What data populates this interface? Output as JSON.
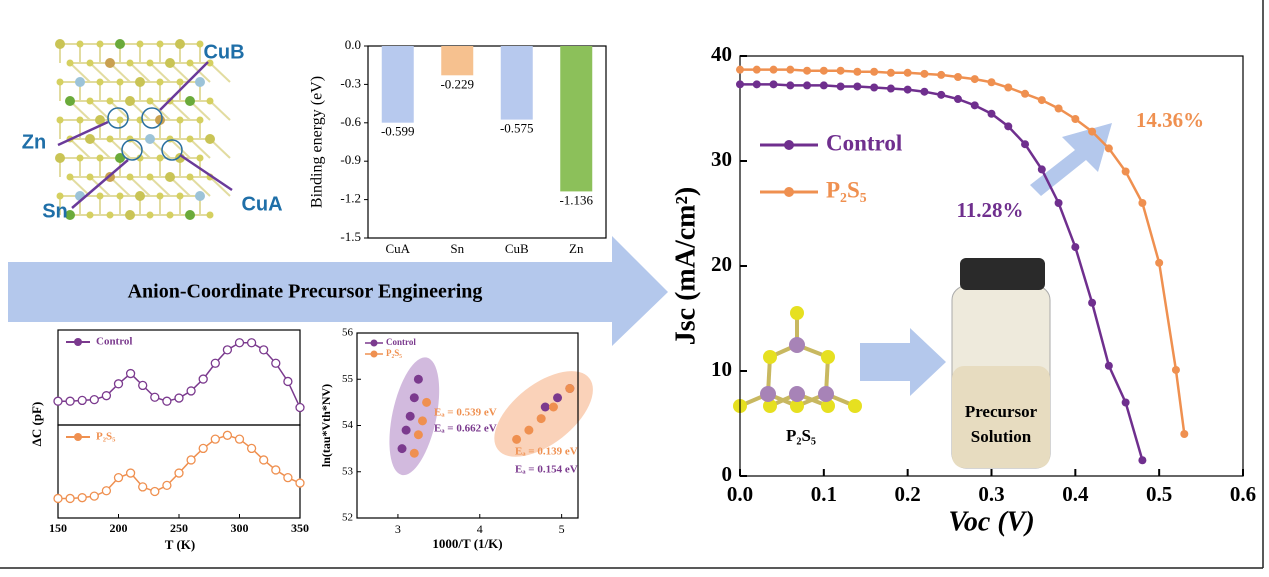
{
  "structure": {
    "labels": [
      "CuB",
      "Zn",
      "Sn",
      "CuA"
    ]
  },
  "banner": "Anion-Coordinate Precursor Engineering",
  "molecule_label": "P₂S₅",
  "vial_label": [
    "Precursor",
    "Solution"
  ],
  "chart_data": [
    {
      "type": "bar",
      "ylabel": "Binding energy (eV)",
      "categories": [
        "CuA",
        "Sn",
        "CuB",
        "Zn"
      ],
      "values": [
        -0.599,
        -0.229,
        -0.575,
        -1.136
      ],
      "colors": [
        "#b7c9ee",
        "#f6c18f",
        "#b7c9ee",
        "#8cc05a"
      ],
      "ylim": [
        -1.5,
        0
      ],
      "yticks": [
        {
          "value": 0,
          "label": "0.0"
        },
        -0.3,
        -0.6,
        -0.9,
        -1.2,
        -1.5
      ]
    },
    {
      "type": "line",
      "ylabel": "ΔC (pF)",
      "xlabel": "T (K)",
      "x": [
        150,
        160,
        170,
        180,
        190,
        200,
        210,
        220,
        230,
        240,
        250,
        260,
        270,
        280,
        290,
        300,
        310,
        320,
        330,
        340,
        350
      ],
      "series": [
        {
          "name": "Control",
          "color": "#7b3a8e",
          "values": [
            0.2,
            0.2,
            0.21,
            0.22,
            0.27,
            0.42,
            0.55,
            0.4,
            0.25,
            0.2,
            0.24,
            0.33,
            0.48,
            0.68,
            0.85,
            0.94,
            0.94,
            0.85,
            0.68,
            0.45,
            0.12
          ]
        },
        {
          "name": "P₂S₅",
          "color": "#ef9050",
          "values": [
            0.15,
            0.15,
            0.16,
            0.18,
            0.25,
            0.42,
            0.48,
            0.3,
            0.24,
            0.32,
            0.48,
            0.65,
            0.8,
            0.92,
            0.97,
            0.92,
            0.8,
            0.65,
            0.52,
            0.42,
            0.35
          ]
        }
      ],
      "xlim": [
        150,
        350
      ],
      "xticks": [
        150,
        200,
        250,
        300,
        350
      ],
      "ylim": [
        0,
        1
      ]
    },
    {
      "type": "scatter",
      "ylabel": "ln(tau*Vth*NV)",
      "xlabel": "1000/T (1/K)",
      "series": [
        {
          "name": "Control",
          "color": "#7b3a8e",
          "x": [
            3.05,
            3.1,
            3.15,
            3.2,
            3.25,
            4.8,
            4.95,
            5.1
          ],
          "values": [
            53.5,
            53.9,
            54.2,
            54.6,
            55.0,
            54.4,
            54.6,
            54.8
          ]
        },
        {
          "name": "P₂S₅",
          "color": "#ef9050",
          "x": [
            3.2,
            3.25,
            3.3,
            3.35,
            4.45,
            4.6,
            4.75,
            4.9,
            5.1
          ],
          "values": [
            53.4,
            53.8,
            54.1,
            54.5,
            53.7,
            53.9,
            54.15,
            54.4,
            54.8
          ]
        }
      ],
      "annotations": [
        "Eₐ = 0.539 eV",
        "Eₐ = 0.662 eV",
        "Eₐ = 0.139 eV",
        "Eₐ = 0.154 eV"
      ],
      "xlim": [
        2.5,
        5.2
      ],
      "xticks": [
        3,
        4,
        5
      ],
      "ylim": [
        52,
        56
      ],
      "yticks": [
        52,
        53,
        54,
        55,
        56
      ]
    },
    {
      "type": "line",
      "ylabel": "Jsc (mA/cm²)",
      "xlabel": "Voc (V)",
      "series": [
        {
          "name": "Control",
          "color": "#6f2f8e",
          "x": [
            0,
            0.02,
            0.04,
            0.06,
            0.08,
            0.1,
            0.12,
            0.14,
            0.16,
            0.18,
            0.2,
            0.22,
            0.24,
            0.26,
            0.28,
            0.3,
            0.32,
            0.34,
            0.36,
            0.38,
            0.4,
            0.42,
            0.44,
            0.46,
            0.48
          ],
          "values": [
            37.3,
            37.3,
            37.3,
            37.2,
            37.2,
            37.2,
            37.1,
            37.1,
            37.0,
            36.9,
            36.8,
            36.6,
            36.3,
            35.9,
            35.3,
            34.5,
            33.3,
            31.6,
            29.2,
            26.0,
            21.8,
            16.5,
            10.5,
            7.0,
            1.5
          ]
        },
        {
          "name": "P₂S₅",
          "color": "#ef9050",
          "x": [
            0,
            0.02,
            0.04,
            0.06,
            0.08,
            0.1,
            0.12,
            0.14,
            0.16,
            0.18,
            0.2,
            0.22,
            0.24,
            0.26,
            0.28,
            0.3,
            0.32,
            0.34,
            0.36,
            0.38,
            0.4,
            0.42,
            0.44,
            0.46,
            0.48,
            0.5,
            0.52,
            0.53
          ],
          "values": [
            38.7,
            38.7,
            38.7,
            38.7,
            38.6,
            38.6,
            38.6,
            38.5,
            38.5,
            38.4,
            38.4,
            38.3,
            38.2,
            38.0,
            37.8,
            37.5,
            37.0,
            36.4,
            35.8,
            35.0,
            34.0,
            32.8,
            31.2,
            29.0,
            26.0,
            20.3,
            10.1,
            4.0
          ]
        }
      ],
      "annotations": [
        "11.28%",
        "14.36%"
      ],
      "xlim": [
        0,
        0.6
      ],
      "xticks": [
        {
          "value": 0,
          "label": "0.0"
        },
        0.1,
        0.2,
        0.3,
        0.4,
        0.5,
        0.6
      ],
      "ylim": [
        0,
        40
      ],
      "yticks": [
        0,
        10,
        20,
        30,
        40
      ]
    }
  ]
}
